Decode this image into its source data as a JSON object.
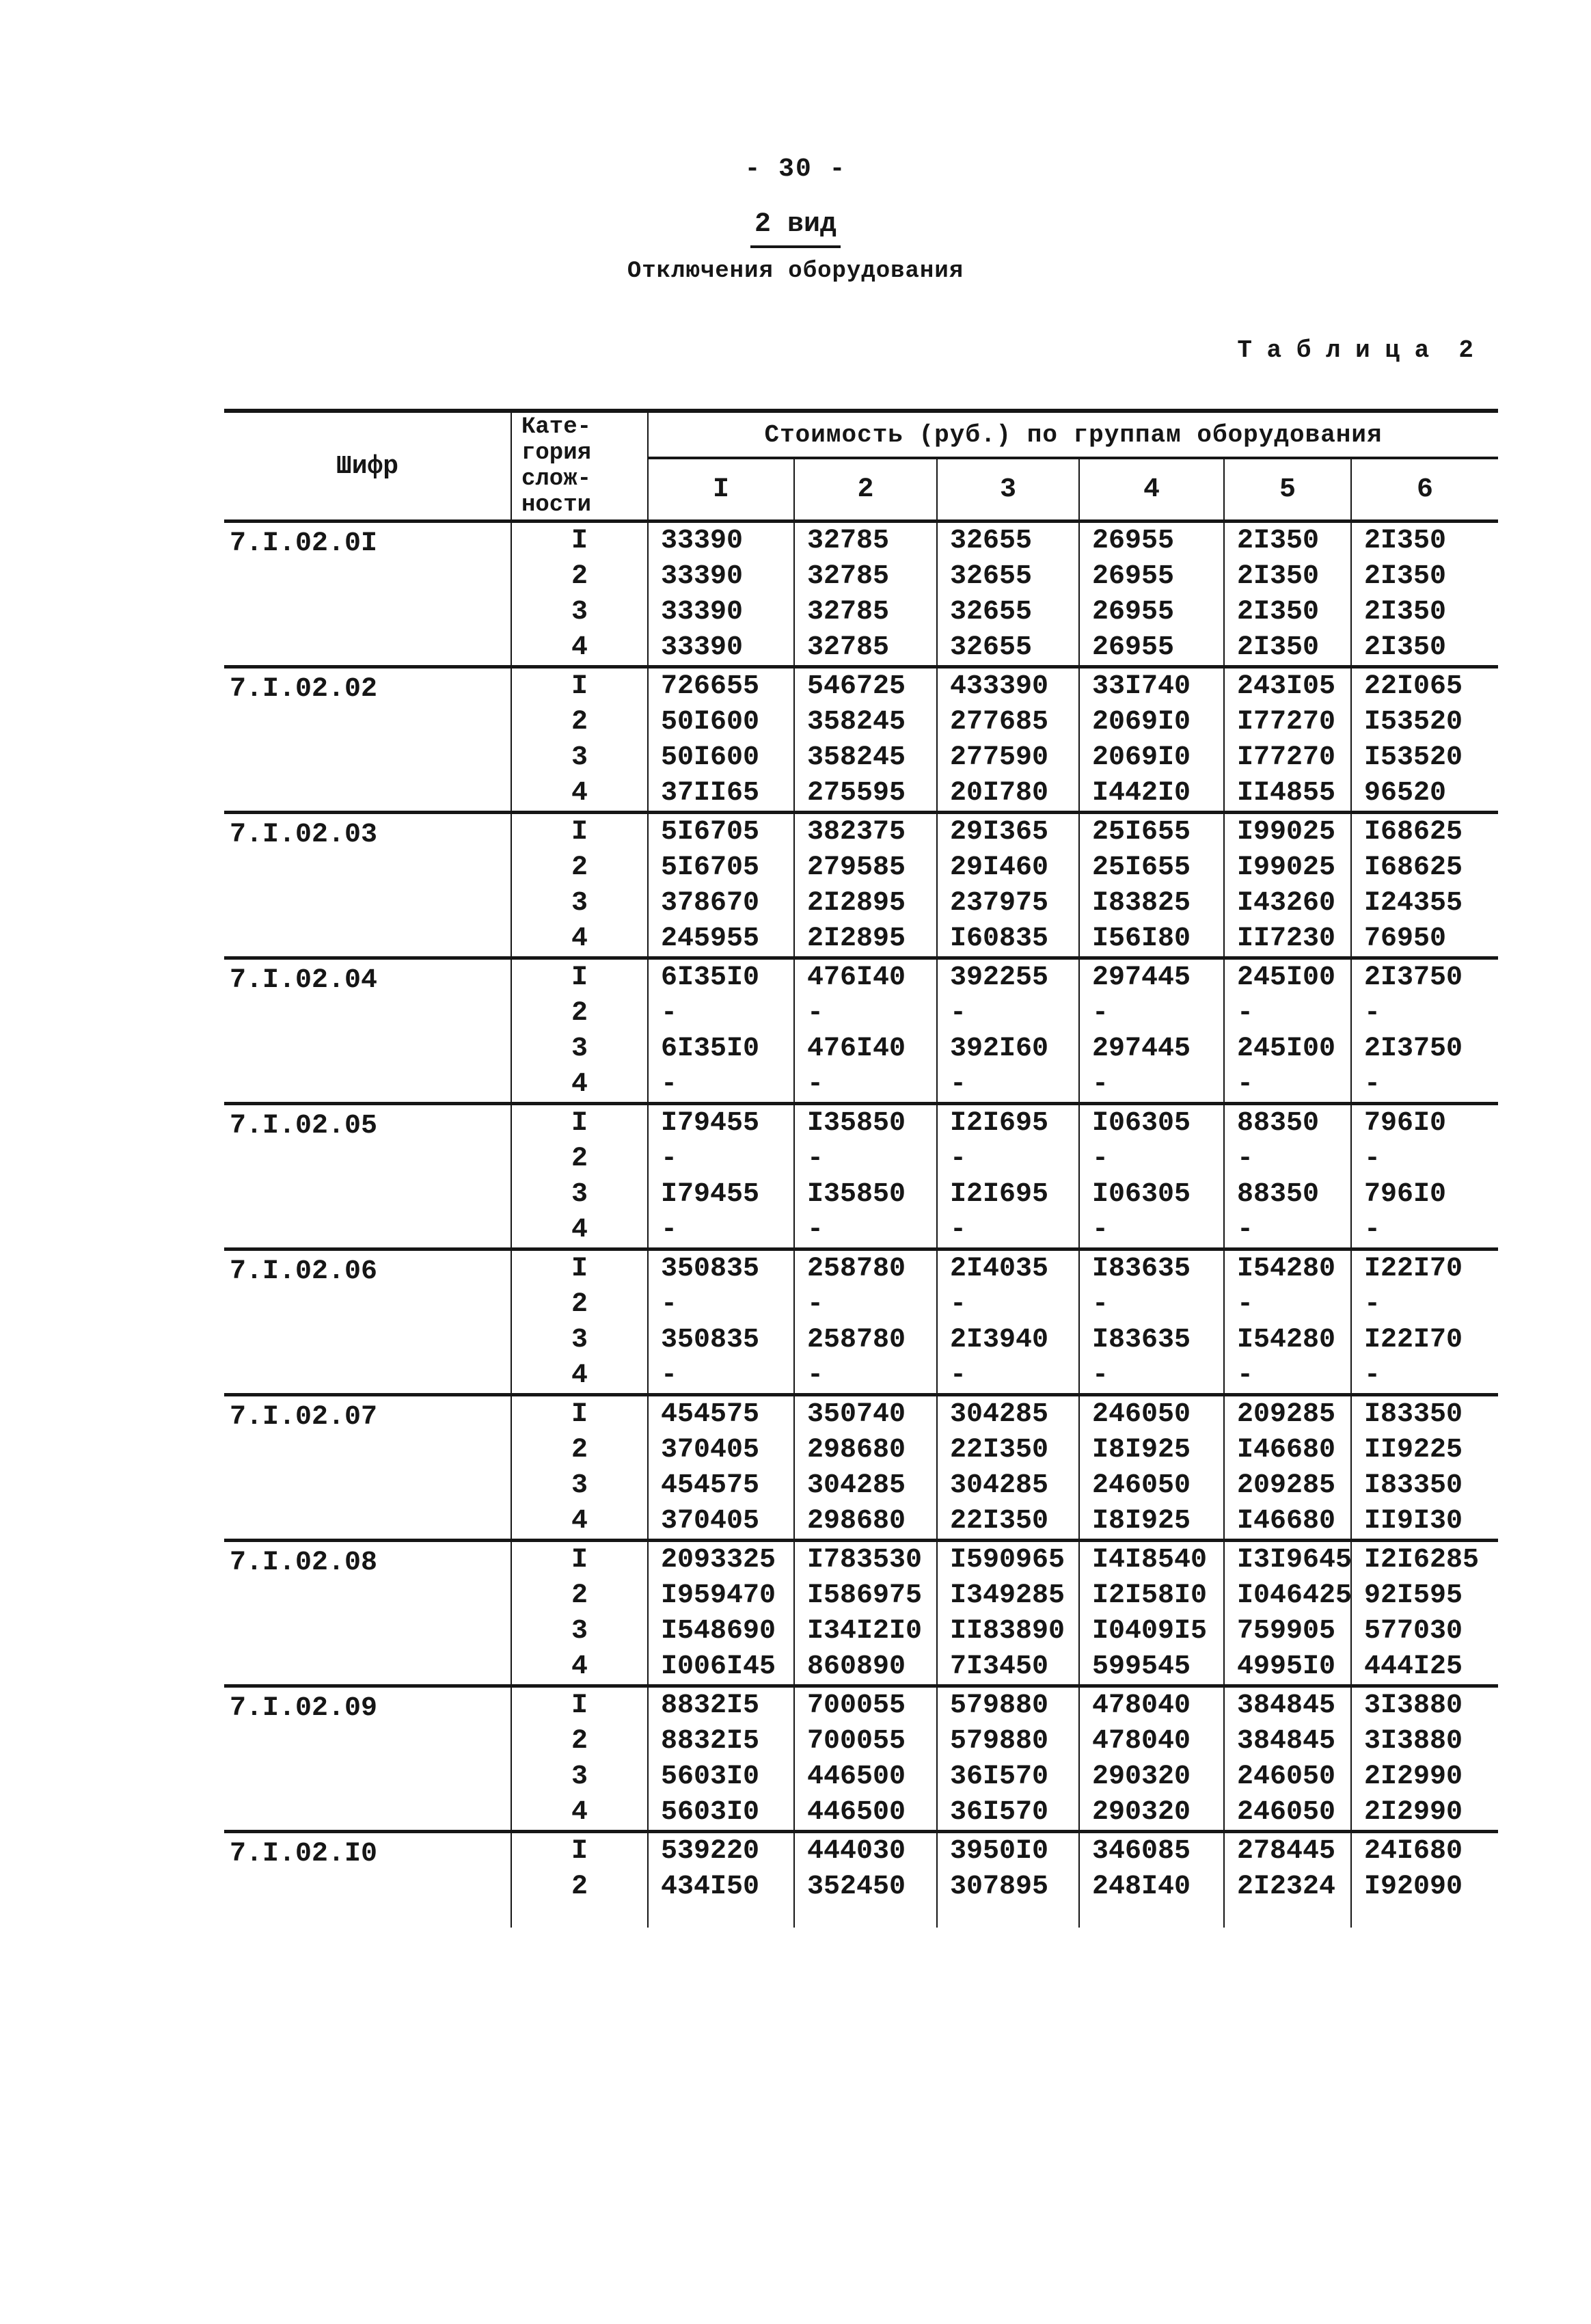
{
  "ink_color": "#161616",
  "paper_color": "#ffffff",
  "page": {
    "page_number": "- 30 -",
    "view_title": "2 вид",
    "subtitle": "Отключения оборудования",
    "table_caption": "Т а б л и ц а  2"
  },
  "table": {
    "code_header": "Шифр",
    "category_header_lines": [
      "Кате-",
      "гория",
      "слож-",
      "ности"
    ],
    "group_header": "Стоимость (руб.) по группам оборудования",
    "group_columns": [
      "I",
      "2",
      "3",
      "4",
      "5",
      "6"
    ],
    "sections": [
      {
        "code": "7.I.02.0I",
        "rows": [
          {
            "category": "I",
            "values": [
              "33390",
              "32785",
              "32655",
              "26955",
              "2I350",
              "2I350"
            ]
          },
          {
            "category": "2",
            "values": [
              "33390",
              "32785",
              "32655",
              "26955",
              "2I350",
              "2I350"
            ]
          },
          {
            "category": "3",
            "values": [
              "33390",
              "32785",
              "32655",
              "26955",
              "2I350",
              "2I350"
            ]
          },
          {
            "category": "4",
            "values": [
              "33390",
              "32785",
              "32655",
              "26955",
              "2I350",
              "2I350"
            ]
          }
        ]
      },
      {
        "code": "7.I.02.02",
        "rows": [
          {
            "category": "I",
            "values": [
              "726655",
              "546725",
              "433390",
              "33I740",
              "243I05",
              "22I065"
            ]
          },
          {
            "category": "2",
            "values": [
              "50I600",
              "358245",
              "277685",
              "2069I0",
              "I77270",
              "I53520"
            ]
          },
          {
            "category": "3",
            "values": [
              "50I600",
              "358245",
              "277590",
              "2069I0",
              "I77270",
              "I53520"
            ]
          },
          {
            "category": "4",
            "values": [
              "37II65",
              "275595",
              "20I780",
              "I442I0",
              "II4855",
              "96520"
            ]
          }
        ]
      },
      {
        "code": "7.I.02.03",
        "rows": [
          {
            "category": "I",
            "values": [
              "5I6705",
              "382375",
              "29I365",
              "25I655",
              "I99025",
              "I68625"
            ]
          },
          {
            "category": "2",
            "values": [
              "5I6705",
              "279585",
              "29I460",
              "25I655",
              "I99025",
              "I68625"
            ]
          },
          {
            "category": "3",
            "values": [
              "378670",
              "2I2895",
              "237975",
              "I83825",
              "I43260",
              "I24355"
            ]
          },
          {
            "category": "4",
            "values": [
              "245955",
              "2I2895",
              "I60835",
              "I56I80",
              "II7230",
              "76950"
            ]
          }
        ]
      },
      {
        "code": "7.I.02.04",
        "rows": [
          {
            "category": "I",
            "values": [
              "6I35I0",
              "476I40",
              "392255",
              "297445",
              "245I00",
              "2I3750"
            ]
          },
          {
            "category": "2",
            "values": [
              "-",
              "-",
              "-",
              "-",
              "-",
              "-"
            ]
          },
          {
            "category": "3",
            "values": [
              "6I35I0",
              "476I40",
              "392I60",
              "297445",
              "245I00",
              "2I3750"
            ]
          },
          {
            "category": "4",
            "values": [
              "-",
              "-",
              "-",
              "-",
              "-",
              "-"
            ]
          }
        ]
      },
      {
        "code": "7.I.02.05",
        "rows": [
          {
            "category": "I",
            "values": [
              "I79455",
              "I35850",
              "I2I695",
              "I06305",
              "88350",
              "796I0"
            ]
          },
          {
            "category": "2",
            "values": [
              "-",
              "-",
              "-",
              "-",
              "-",
              "-"
            ]
          },
          {
            "category": "3",
            "values": [
              "I79455",
              "I35850",
              "I2I695",
              "I06305",
              "88350",
              "796I0"
            ]
          },
          {
            "category": "4",
            "values": [
              "-",
              "-",
              "-",
              "-",
              "-",
              "-"
            ]
          }
        ]
      },
      {
        "code": "7.I.02.06",
        "rows": [
          {
            "category": "I",
            "values": [
              "350835",
              "258780",
              "2I4035",
              "I83635",
              "I54280",
              "I22I70"
            ]
          },
          {
            "category": "2",
            "values": [
              "-",
              "-",
              "-",
              "-",
              "-",
              "-"
            ]
          },
          {
            "category": "3",
            "values": [
              "350835",
              "258780",
              "2I3940",
              "I83635",
              "I54280",
              "I22I70"
            ]
          },
          {
            "category": "4",
            "values": [
              "-",
              "-",
              "-",
              "-",
              "-",
              "-"
            ]
          }
        ]
      },
      {
        "code": "7.I.02.07",
        "rows": [
          {
            "category": "I",
            "values": [
              "454575",
              "350740",
              "304285",
              "246050",
              "209285",
              "I83350"
            ]
          },
          {
            "category": "2",
            "values": [
              "370405",
              "298680",
              "22I350",
              "I8I925",
              "I46680",
              "II9225"
            ]
          },
          {
            "category": "3",
            "values": [
              "454575",
              "304285",
              "304285",
              "246050",
              "209285",
              "I83350"
            ]
          },
          {
            "category": "4",
            "values": [
              "370405",
              "298680",
              "22I350",
              "I8I925",
              "I46680",
              "II9I30"
            ]
          }
        ]
      },
      {
        "code": "7.I.02.08",
        "rows": [
          {
            "category": "I",
            "values": [
              "2093325",
              "I783530",
              "I590965",
              "I4I8540",
              "I3I9645",
              "I2I6285"
            ]
          },
          {
            "category": "2",
            "values": [
              "I959470",
              "I586975",
              "I349285",
              "I2I58I0",
              "I046425",
              "92I595"
            ]
          },
          {
            "category": "3",
            "values": [
              "I548690",
              "I34I2I0",
              "II83890",
              "I0409I5",
              "759905",
              "577030"
            ]
          },
          {
            "category": "4",
            "values": [
              "I006I45",
              "860890",
              "7I3450",
              "599545",
              "4995I0",
              "444I25"
            ]
          }
        ]
      },
      {
        "code": "7.I.02.09",
        "rows": [
          {
            "category": "I",
            "values": [
              "8832I5",
              "700055",
              "579880",
              "478040",
              "384845",
              "3I3880"
            ]
          },
          {
            "category": "2",
            "values": [
              "8832I5",
              "700055",
              "579880",
              "478040",
              "384845",
              "3I3880"
            ]
          },
          {
            "category": "3",
            "values": [
              "5603I0",
              "446500",
              "36I570",
              "290320",
              "246050",
              "2I2990"
            ]
          },
          {
            "category": "4",
            "values": [
              "5603I0",
              "446500",
              "36I570",
              "290320",
              "246050",
              "2I2990"
            ]
          }
        ]
      },
      {
        "code": "7.I.02.I0",
        "rows": [
          {
            "category": "I",
            "values": [
              "539220",
              "444030",
              "3950I0",
              "346085",
              "278445",
              "24I680"
            ]
          },
          {
            "category": "2",
            "values": [
              "434I50",
              "352450",
              "307895",
              "248I40",
              "2I2324",
              "I92090"
            ]
          }
        ]
      }
    ]
  }
}
